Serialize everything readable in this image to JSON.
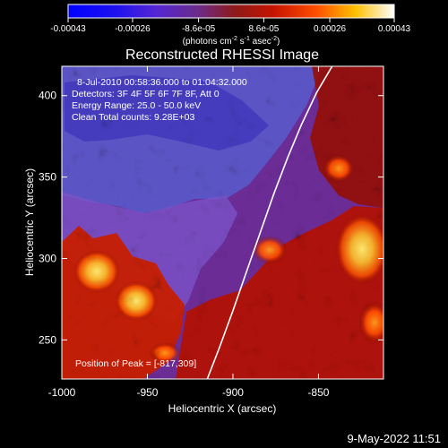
{
  "chart_data": {
    "type": "heatmap",
    "title": "Reconstructed RHESSI Image",
    "xlabel": "Heliocentric X (arcsec)",
    "ylabel": "Heliocentric Y (arcsec)",
    "xlim": [
      -1000,
      -812
    ],
    "ylim": [
      226,
      418
    ],
    "x_ticks": [
      "-1000",
      "-950",
      "-900",
      "-850"
    ],
    "x_tick_values": [
      -1000,
      -950,
      -900,
      -850
    ],
    "y_ticks": [
      "250",
      "300",
      "350",
      "400"
    ],
    "y_tick_values": [
      250,
      300,
      350,
      400
    ],
    "colorbar": {
      "min": -0.00043,
      "max": 0.00043,
      "tick_labels": [
        "-0.00043",
        "-0.00026",
        "-8.6e-05",
        "8.6e-05",
        "0.00026",
        "0.00043"
      ],
      "tick_values": [
        -0.00043,
        -0.00026,
        -8.6e-05,
        8.6e-05,
        0.00026,
        0.00043
      ],
      "units_main": "(photons cm",
      "units_exp1": "-2",
      "units_mid": " s",
      "units_exp2": "-1",
      "units_end": " asec",
      "units_exp3": "-2",
      "units_close": ")"
    },
    "info_lines": [
      "8-Jul-2010 00:58:36.000 to 01:04:32.000",
      "Detectors: 3F 4F 5F 6F 7F 8F, Att 0",
      "Energy Range: 25.0 - 50.0 keV",
      "Clean     Total counts: 9.28E+03"
    ],
    "peak_label": "Position of Peak = [-817,309]",
    "limb_curve": [
      [
        -915,
        226
      ],
      [
        -908,
        245
      ],
      [
        -900,
        268
      ],
      [
        -892,
        292
      ],
      [
        -884,
        316
      ],
      [
        -876,
        340
      ],
      [
        -868,
        362
      ],
      [
        -860,
        382
      ],
      [
        -851,
        402
      ],
      [
        -842,
        418
      ]
    ],
    "colors": {
      "background": "#000000",
      "limb": "#ffffff",
      "colormap": [
        "#0000ff",
        "#5c25cf",
        "#7a5ad5",
        "#8a4a74",
        "#a01010",
        "#ff3300",
        "#ff8c00",
        "#ffe000",
        "#ffffff"
      ]
    }
  },
  "footer": {
    "timestamp": "9-May-2022 11:51"
  }
}
